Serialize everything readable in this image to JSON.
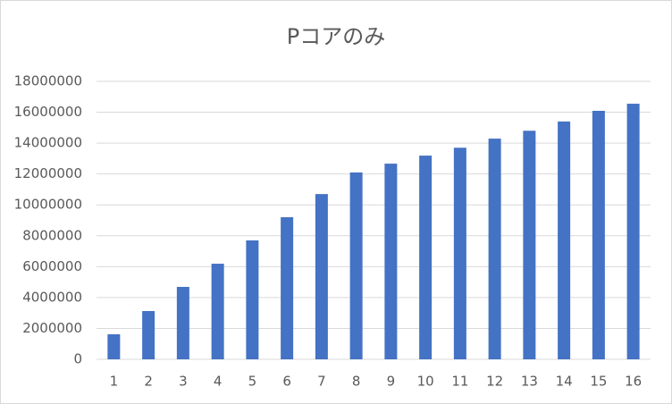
{
  "chart_data": {
    "type": "bar",
    "title": "Pコアのみ",
    "categories": [
      "1",
      "2",
      "3",
      "4",
      "5",
      "6",
      "7",
      "8",
      "9",
      "10",
      "11",
      "12",
      "13",
      "14",
      "15",
      "16"
    ],
    "values": [
      1620000,
      3125000,
      4690000,
      6190000,
      7700000,
      9200000,
      10700000,
      12100000,
      12670000,
      13190000,
      13700000,
      14290000,
      14800000,
      15400000,
      16090000,
      16550000
    ],
    "color": "#4472c4",
    "ylim": [
      0,
      18000000
    ],
    "yticks": [
      0,
      2000000,
      4000000,
      6000000,
      8000000,
      10000000,
      12000000,
      14000000,
      16000000,
      18000000
    ],
    "grid": true
  }
}
